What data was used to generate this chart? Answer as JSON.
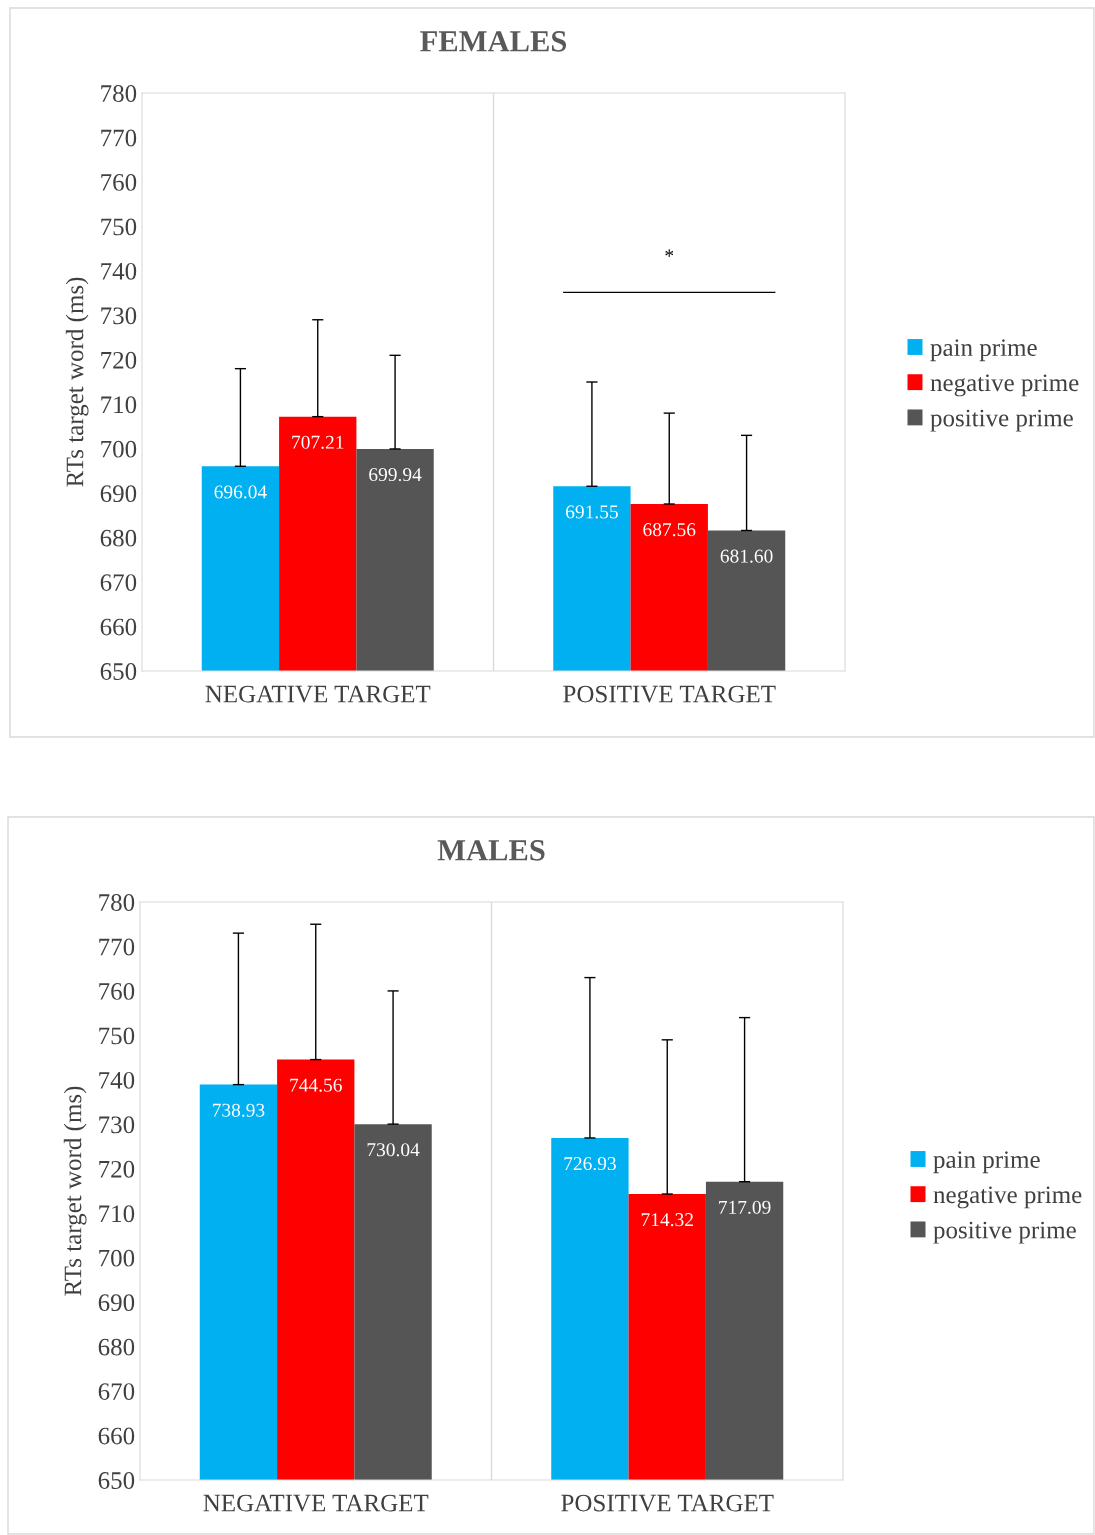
{
  "chart_data": [
    {
      "type": "bar",
      "title": "FEMALES",
      "ylabel": "RTs target word (ms)",
      "categories": [
        "NEGATIVE TARGET",
        "POSITIVE TARGET"
      ],
      "ylim": [
        650,
        780
      ],
      "yticks": [
        650,
        660,
        670,
        680,
        690,
        700,
        710,
        720,
        730,
        740,
        750,
        760,
        770,
        780
      ],
      "grid": false,
      "legend": "right",
      "data_labels": true,
      "series": [
        {
          "name": "pain prime",
          "color": "#00b0f0",
          "values": [
            696.04,
            691.55
          ],
          "errors": [
            [
              696.04,
              718
            ],
            [
              691.55,
              715
            ]
          ]
        },
        {
          "name": "negative prime",
          "color": "#ff0000",
          "values": [
            707.21,
            687.56
          ],
          "errors": [
            [
              707.21,
              729
            ],
            [
              687.56,
              708
            ]
          ]
        },
        {
          "name": "positive prime",
          "color": "#555555",
          "values": [
            699.94,
            681.6
          ],
          "value_labels": [
            "699.94",
            "681.60"
          ],
          "errors": [
            [
              699.94,
              721
            ],
            [
              681.6,
              703
            ]
          ]
        }
      ],
      "annotations": [
        "*"
      ]
    },
    {
      "type": "bar",
      "title": "MALES",
      "ylabel": "RTs target word (ms)",
      "categories": [
        "NEGATIVE TARGET",
        "POSITIVE TARGET"
      ],
      "ylim": [
        650,
        780
      ],
      "yticks": [
        650,
        660,
        670,
        680,
        690,
        700,
        710,
        720,
        730,
        740,
        750,
        760,
        770,
        780
      ],
      "grid": false,
      "legend": "right",
      "data_labels": true,
      "series": [
        {
          "name": "pain prime",
          "color": "#00b0f0",
          "values": [
            738.93,
            726.93
          ],
          "errors": [
            [
              738.93,
              773
            ],
            [
              726.93,
              763
            ]
          ]
        },
        {
          "name": "negative prime",
          "color": "#ff0000",
          "values": [
            744.56,
            714.32
          ],
          "errors": [
            [
              744.56,
              775
            ],
            [
              714.32,
              749
            ]
          ]
        },
        {
          "name": "positive prime",
          "color": "#555555",
          "values": [
            730.04,
            717.09
          ],
          "errors": [
            [
              730.04,
              760
            ],
            [
              717.09,
              754
            ]
          ]
        }
      ]
    }
  ]
}
